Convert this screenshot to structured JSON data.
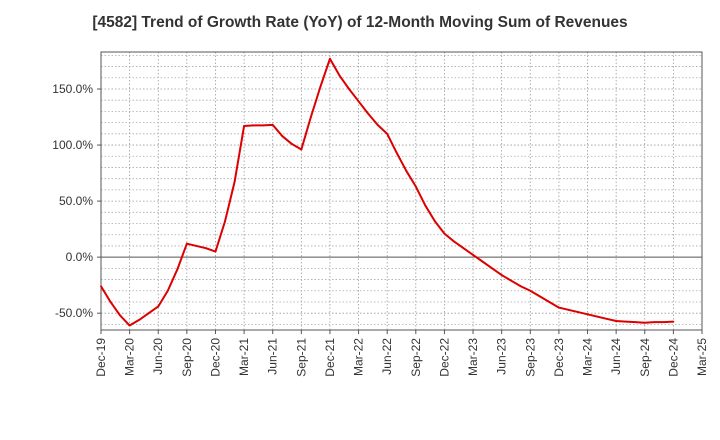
{
  "chart_data": {
    "type": "line",
    "title": "[4582]  Trend of Growth Rate (YoY) of 12-Month Moving Sum of Revenues",
    "xlabel": "",
    "ylabel": "",
    "x_tick_labels": [
      "Dec-19",
      "Mar-20",
      "Jun-20",
      "Sep-20",
      "Dec-20",
      "Mar-21",
      "Jun-21",
      "Sep-21",
      "Dec-21",
      "Mar-22",
      "Jun-22",
      "Sep-22",
      "Dec-22",
      "Mar-23",
      "Jun-23",
      "Sep-23",
      "Dec-23",
      "Mar-24",
      "Jun-24",
      "Sep-24",
      "Dec-24",
      "Mar-25"
    ],
    "y_tick_labels": [
      "-50.0%",
      "0.0%",
      "50.0%",
      "100.0%",
      "150.0%"
    ],
    "y_ticks": [
      -50,
      0,
      50,
      100,
      150
    ],
    "ylim": [
      -65,
      183
    ],
    "xlim": [
      "Dec-19",
      "Mar-25"
    ],
    "grid": true,
    "line_color": "#dd0000",
    "series": [
      {
        "x": [
          "Dec-19",
          "Jan-20",
          "Feb-20",
          "Mar-20",
          "Apr-20",
          "May-20",
          "Jun-20",
          "Jul-20",
          "Aug-20",
          "Sep-20",
          "Oct-20",
          "Nov-20",
          "Dec-20",
          "Jan-21",
          "Feb-21",
          "Mar-21",
          "Apr-21",
          "May-21",
          "Jun-21",
          "Jul-21",
          "Aug-21",
          "Sep-21",
          "Oct-21",
          "Nov-21",
          "Dec-21",
          "Jan-22",
          "Feb-22",
          "Mar-22",
          "Apr-22",
          "May-22",
          "Jun-22",
          "Jul-22",
          "Aug-22",
          "Sep-22",
          "Oct-22",
          "Nov-22",
          "Dec-22",
          "Jan-23",
          "Feb-23",
          "Mar-23",
          "Apr-23",
          "May-23",
          "Jun-23",
          "Jul-23",
          "Aug-23",
          "Sep-23",
          "Oct-23",
          "Nov-23",
          "Dec-23",
          "Jan-24",
          "Feb-24",
          "Mar-24",
          "Apr-24",
          "May-24",
          "Jun-24",
          "Jul-24",
          "Aug-24",
          "Sep-24",
          "Oct-24",
          "Nov-24",
          "Dec-24"
        ],
        "values": [
          -26,
          -40,
          -52,
          -61,
          -56,
          -50,
          -44,
          -30,
          -11,
          12,
          10,
          8,
          5,
          32,
          67,
          117,
          117.5,
          117.5,
          118,
          108,
          101,
          96,
          125,
          152,
          177,
          162,
          150,
          139,
          128,
          118,
          110,
          93,
          77,
          63,
          46,
          32,
          21,
          14,
          8,
          2,
          -4,
          -10,
          -16,
          -21,
          -26,
          -30,
          -35,
          -40,
          -45,
          -47,
          -49,
          -51,
          -53,
          -55,
          -57,
          -57.5,
          -58,
          -58.5,
          -58,
          -58,
          -57.5
        ]
      }
    ]
  }
}
